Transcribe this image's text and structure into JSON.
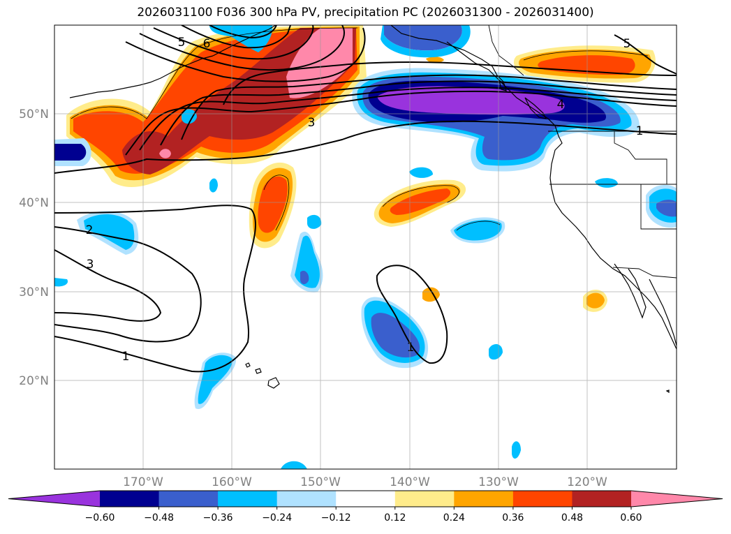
{
  "title": "2026031100 F036 300 hPa PV, precipitation PC (2026031300 - 2026031400)",
  "lat_ticks": [
    "50°N",
    "40°N",
    "30°N",
    "20°N"
  ],
  "lon_ticks": [
    "170°W",
    "160°W",
    "150°W",
    "140°W",
    "130°W",
    "120°W"
  ],
  "colorbar": {
    "levels": [
      "−0.60",
      "−0.48",
      "−0.36",
      "−0.24",
      "−0.12",
      "0.12",
      "0.24",
      "0.36",
      "0.48",
      "0.60"
    ],
    "colors": [
      "#9933dd",
      "#000090",
      "#3a5fcd",
      "#00bfff",
      "#b0e2ff",
      "#ffffff",
      "#ffec8b",
      "#ffa500",
      "#ff4500",
      "#b22222",
      "#ff88aa"
    ]
  },
  "contour_labels": [
    "5",
    "6",
    "5",
    "3",
    "2",
    "3",
    "1",
    "1",
    "4",
    "1"
  ],
  "colors": {
    "purple": "#9933dd",
    "navy": "#000090",
    "royal": "#3a5fcd",
    "sky": "#00bfff",
    "pale_blue": "#b0e2ff",
    "pale_yellow": "#ffec8b",
    "orange": "#ffa500",
    "red_orange": "#ff4500",
    "firebrick": "#b22222",
    "pink": "#ff88aa"
  }
}
